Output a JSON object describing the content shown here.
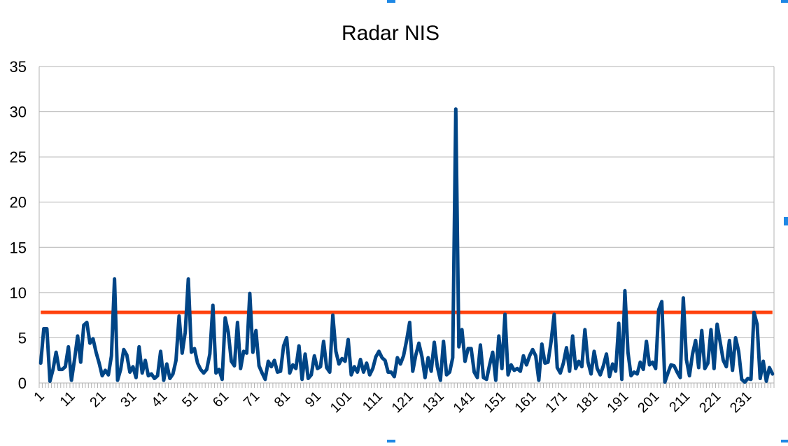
{
  "chart_data": {
    "type": "line",
    "title": "Radar NIS",
    "xlabel": "",
    "ylabel": "",
    "ylim": [
      0,
      35
    ],
    "yticks": [
      0,
      5,
      10,
      15,
      20,
      25,
      30,
      35
    ],
    "xticks": [
      1,
      11,
      21,
      31,
      41,
      51,
      61,
      71,
      81,
      91,
      101,
      111,
      121,
      131,
      141,
      151,
      161,
      171,
      181,
      191,
      201,
      211,
      221,
      231
    ],
    "x_start": 1,
    "grid": true,
    "legend": "none",
    "series": [
      {
        "color": "#004586",
        "values": [
          2.2,
          6.0,
          6.0,
          0.2,
          1.5,
          3.4,
          1.5,
          1.5,
          1.8,
          4.0,
          0.3,
          2.6,
          5.2,
          2.3,
          6.4,
          6.7,
          4.4,
          4.9,
          3.4,
          2.2,
          0.8,
          1.4,
          0.9,
          3.0,
          11.5,
          0.3,
          1.5,
          3.7,
          3.1,
          1.2,
          1.8,
          0.6,
          4.0,
          1.1,
          2.5,
          0.8,
          1.0,
          0.5,
          0.8,
          3.5,
          0.3,
          2.1,
          0.5,
          1.0,
          2.5,
          7.4,
          3.3,
          5.6,
          11.5,
          3.4,
          3.8,
          2.2,
          1.5,
          1.1,
          1.5,
          3.2,
          8.6,
          1.1,
          1.5,
          0.4,
          7.2,
          5.6,
          2.4,
          1.9,
          6.7,
          1.6,
          3.5,
          3.3,
          9.9,
          3.4,
          5.8,
          1.9,
          1.1,
          0.4,
          2.4,
          1.8,
          2.5,
          1.2,
          1.3,
          4.1,
          5.0,
          1.1,
          2.0,
          1.6,
          4.1,
          0.4,
          3.2,
          0.5,
          0.9,
          3.0,
          1.6,
          1.8,
          4.6,
          1.7,
          1.2,
          7.5,
          3.5,
          2.1,
          2.7,
          2.4,
          4.8,
          0.9,
          1.8,
          1.2,
          2.6,
          1.2,
          2.2,
          0.9,
          1.6,
          2.9,
          3.5,
          2.8,
          2.5,
          1.2,
          1.2,
          0.7,
          2.8,
          2.1,
          3.0,
          4.7,
          6.7,
          1.3,
          3.1,
          4.4,
          2.9,
          0.6,
          2.8,
          1.3,
          4.5,
          1.8,
          0.3,
          4.6,
          0.9,
          1.2,
          2.8,
          30.3,
          4.0,
          5.9,
          2.4,
          3.8,
          3.8,
          1.2,
          0.6,
          4.2,
          0.6,
          0.4,
          2.0,
          3.4,
          0.3,
          5.2,
          1.6,
          7.6,
          0.9,
          2.0,
          1.4,
          1.6,
          1.3,
          3.0,
          2.0,
          3.0,
          3.7,
          3.0,
          0.3,
          4.3,
          2.2,
          2.3,
          4.6,
          7.6,
          1.7,
          1.1,
          2.2,
          3.9,
          1.3,
          5.2,
          1.6,
          2.4,
          1.8,
          5.9,
          2.3,
          1.0,
          3.5,
          1.6,
          0.9,
          1.9,
          3.2,
          0.7,
          2.1,
          1.3,
          6.6,
          0.4,
          10.2,
          3.4,
          0.8,
          1.2,
          1.0,
          2.3,
          1.5,
          4.6,
          2.0,
          2.3,
          1.6,
          8.1,
          9.0,
          0.1,
          1.1,
          2.0,
          1.9,
          1.2,
          0.6,
          9.4,
          2.6,
          0.8,
          3.2,
          4.7,
          1.7,
          5.8,
          1.6,
          2.2,
          5.9,
          1.6,
          6.5,
          4.5,
          2.5,
          1.8,
          4.7,
          1.4,
          5.0,
          3.5,
          0.4,
          0.1,
          0.5,
          0.4,
          7.8,
          6.5,
          0.5,
          2.4,
          0.2,
          1.7,
          1.0
        ]
      },
      {
        "color": "#ff420e",
        "values": [
          7.81
        ]
      }
    ]
  }
}
